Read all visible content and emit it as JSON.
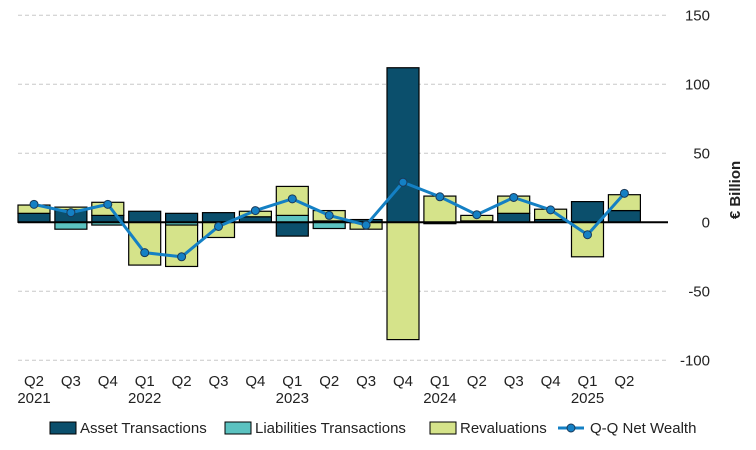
{
  "chart_data": {
    "type": "bar",
    "categories": [
      "Q2\n2021",
      "Q3",
      "Q4",
      "Q1\n2022",
      "Q2",
      "Q3",
      "Q4",
      "Q1\n2023",
      "Q2",
      "Q3",
      "Q4",
      "Q1\n2024",
      "Q2",
      "Q3",
      "Q4",
      "Q1\n2025",
      "Q2"
    ],
    "ylabel": "€ Billion",
    "ylim": [
      -100,
      150
    ],
    "yticks": [
      -100,
      -50,
      0,
      50,
      100,
      150
    ],
    "grid": true,
    "legend_position": "bottom",
    "series": [
      {
        "name": "Asset Transactions",
        "kind": "stacked-bar",
        "color": "#0b4f6c",
        "values": [
          6.5,
          9,
          5,
          8,
          6.5,
          7,
          4,
          -10,
          1,
          2,
          112,
          -1,
          1,
          6.5,
          2,
          15,
          8.5
        ]
      },
      {
        "name": "Liabilities Transactions",
        "kind": "stacked-bar",
        "color": "#5bc2c0",
        "values": [
          0,
          -5,
          -2,
          0,
          -2,
          0,
          0,
          5,
          -4.5,
          0,
          0,
          0,
          0,
          0,
          0,
          0,
          0
        ]
      },
      {
        "name": "Revaluations",
        "kind": "stacked-bar",
        "color": "#d5e38a",
        "values": [
          6,
          2,
          9.5,
          -31,
          -30,
          -11,
          4,
          21,
          7.5,
          -5,
          -85,
          19,
          4,
          12.5,
          7.5,
          -25,
          11.5
        ]
      },
      {
        "name": "Q-Q Net Wealth",
        "kind": "line",
        "color": "#1480c4",
        "values": [
          13,
          7,
          13,
          -22,
          -25,
          -3,
          8.5,
          17,
          5,
          -2,
          29,
          18.5,
          5.5,
          18,
          9,
          -9,
          21
        ]
      }
    ]
  }
}
